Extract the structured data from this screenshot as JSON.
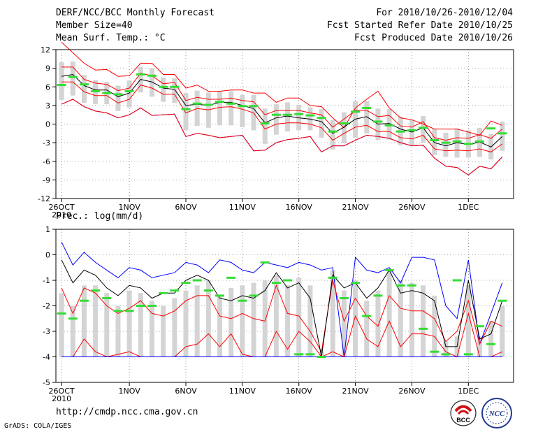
{
  "header": {
    "title": "DERF/NCC/BCC Monthly Forecast",
    "member_size": "Member Size=40",
    "variable": "Mean Surf. Temp.: °C",
    "period": "For 2010/10/26-2010/12/04",
    "started": "Fcst Started Refer Date 2010/10/25",
    "produced": "Fcst Produced Date 2010/10/26"
  },
  "footer": {
    "url": "http://cmdp.ncc.cma.gov.cn",
    "credit": "GrADS: COLA/IGES",
    "logo_bcc": "BCC",
    "logo_ncc": "NCC"
  },
  "colors": {
    "max_min": "#0000ff",
    "pct": "#ff0000",
    "mean": "#000000",
    "box": "#d4d4d4",
    "obs": "#33dd33",
    "frame": "#000000"
  },
  "chart_data": [
    {
      "type": "line",
      "title": "Mean Surf. Temp.: °C",
      "xlabel": "",
      "ylabel": "",
      "ylim": [
        -12,
        12
      ],
      "yticks": [
        12,
        9,
        6,
        3,
        0,
        -3,
        -6,
        -9,
        -12
      ],
      "xtick_labels": [
        "26OCT",
        "1NOV",
        "6NOV",
        "11NOV",
        "16NOV",
        "21NOV",
        "26NOV",
        "1DEC"
      ],
      "xtick_days": [
        1,
        7,
        12,
        17,
        22,
        27,
        32,
        37
      ],
      "year_label": "2010",
      "days": 40,
      "series": [
        {
          "name": "max",
          "values": [
            3.2,
            4.0,
            2.8,
            2.1,
            1.8,
            1.0,
            1.5,
            2.6,
            1.4,
            1.5,
            1.6,
            -2.0,
            -1.5,
            -1.8,
            -2.2,
            -2.0,
            -1.8,
            -4.3,
            -4.2,
            -3.0,
            -2.5,
            -2.3,
            -2.0,
            -4.5,
            -3.5,
            -3.5,
            -2.6,
            -1.8,
            -2.0,
            -2.3,
            -3.0,
            -3.5,
            -3.4,
            -5.5,
            -6.8,
            -7.0,
            -8.2,
            -6.8,
            -7.2,
            -5.3
          ]
        },
        {
          "name": "p90",
          "values": [
            13.2,
            11.5,
            9.8,
            8.7,
            8.8,
            7.7,
            7.8,
            9.8,
            9.8,
            8.0,
            8.0,
            5.8,
            6.3,
            5.3,
            5.3,
            5.5,
            5.5,
            5.0,
            5.0,
            3.5,
            4.2,
            4.2,
            3.0,
            2.8,
            1.0,
            -0.6,
            2.6,
            4.0,
            5.3,
            2.6,
            1.0,
            0.7,
            0.0,
            -0.8,
            -0.8,
            -0.8,
            -1.3,
            -1.8,
            0.5,
            -0.2
          ]
        },
        {
          "name": "p75",
          "values": [
            9.2,
            9.2,
            7.2,
            6.6,
            6.4,
            5.4,
            5.8,
            8.2,
            7.8,
            6.5,
            6.7,
            3.8,
            4.3,
            4.0,
            4.0,
            4.2,
            3.8,
            3.6,
            1.5,
            2.2,
            2.2,
            2.2,
            1.8,
            1.5,
            -0.5,
            0.8,
            2.2,
            2.2,
            1.2,
            1.4,
            -0.3,
            -0.5,
            0.4,
            -2.2,
            -2.6,
            -2.2,
            -2.3,
            -1.7,
            -2.3,
            -0.8
          ]
        },
        {
          "name": "mean",
          "values": [
            7.7,
            8.0,
            6.2,
            5.5,
            5.5,
            4.4,
            5.0,
            7.2,
            6.8,
            5.8,
            5.6,
            3.0,
            3.2,
            3.0,
            3.5,
            3.5,
            3.0,
            2.5,
            0.2,
            1.0,
            1.3,
            1.0,
            0.8,
            0.4,
            -1.5,
            -0.5,
            0.8,
            1.2,
            0.0,
            0.1,
            -0.8,
            -1.3,
            -0.6,
            -3.0,
            -3.5,
            -3.0,
            -3.3,
            -2.9,
            -3.7,
            -2.0
          ]
        },
        {
          "name": "p25",
          "values": [
            6.8,
            6.8,
            5.2,
            4.6,
            4.6,
            3.4,
            4.0,
            6.3,
            5.8,
            4.8,
            4.8,
            1.8,
            2.5,
            2.3,
            2.7,
            2.8,
            2.4,
            1.8,
            -0.8,
            0.0,
            0.2,
            0.2,
            0.0,
            -0.6,
            -2.6,
            -1.5,
            -0.5,
            -0.2,
            -1.2,
            -1.2,
            -2.2,
            -2.4,
            -1.8,
            -4.0,
            -4.3,
            -4.2,
            -4.3,
            -4.0,
            -4.5,
            -3.2
          ]
        },
        {
          "name": "p10",
          "values": [
            3.2,
            4.0,
            2.8,
            2.1,
            1.8,
            1.0,
            1.5,
            2.6,
            1.4,
            1.5,
            1.6,
            -2.0,
            -1.5,
            -1.8,
            -2.2,
            -2.0,
            -1.8,
            -4.3,
            -4.2,
            -3.0,
            -2.5,
            -2.3,
            -2.0,
            -4.5,
            -3.5,
            -3.5,
            -2.6,
            -1.8,
            -2.0,
            -2.3,
            -3.0,
            -3.5,
            -3.4,
            -5.5,
            -6.8,
            -7.0,
            -8.2,
            -6.8,
            -7.2,
            -5.3
          ]
        },
        {
          "name": "obs",
          "values": [
            6.3,
            7.6,
            6.4,
            5.3,
            5.0,
            4.8,
            5.3,
            8.0,
            7.8,
            6.0,
            6.0,
            2.4,
            3.3,
            3.1,
            3.6,
            3.3,
            2.9,
            2.9,
            0.1,
            1.5,
            1.5,
            1.6,
            1.4,
            1.0,
            -1.2,
            0.1,
            2.0,
            2.6,
            0.4,
            -0.2,
            -1.2,
            -1.0,
            -0.6,
            -2.6,
            -3.0,
            -2.8,
            -3.2,
            -2.8,
            -0.7,
            -1.5
          ]
        }
      ],
      "box_low": [
        3.9,
        4.6,
        3.4,
        3.2,
        3.2,
        2.1,
        2.7,
        5.1,
        4.4,
        3.6,
        3.4,
        -1.0,
        -0.3,
        -0.6,
        -0.2,
        -0.2,
        -0.5,
        -1.0,
        -3.2,
        -1.7,
        -1.2,
        -1.0,
        -1.0,
        -2.2,
        -4.1,
        -3.1,
        -2.2,
        -1.5,
        -2.6,
        -2.5,
        -3.4,
        -3.5,
        -3.0,
        -5.0,
        -5.3,
        -5.4,
        -5.4,
        -5.3,
        -5.7,
        -4.3
      ],
      "box_high": [
        10.0,
        10.1,
        7.9,
        7.1,
        6.8,
        6.2,
        7.0,
        9.2,
        9.0,
        7.5,
        7.4,
        5.0,
        5.4,
        5.1,
        5.3,
        5.3,
        4.7,
        4.7,
        2.5,
        3.2,
        3.5,
        3.1,
        2.7,
        2.4,
        0.7,
        1.9,
        3.7,
        3.7,
        2.5,
        2.4,
        1.2,
        0.7,
        1.3,
        -0.8,
        -1.4,
        -0.7,
        -1.0,
        -0.6,
        -1.6,
        0.4
      ]
    },
    {
      "type": "line",
      "title": "Prec.: log(mm/d)",
      "xlabel": "",
      "ylabel": "",
      "ylim": [
        -5,
        1
      ],
      "yticks": [
        1,
        0,
        -1,
        -2,
        -3,
        -4,
        -5
      ],
      "xtick_labels": [
        "26OCT",
        "1NOV",
        "6NOV",
        "11NOV",
        "16NOV",
        "21NOV",
        "26NOV",
        "1DEC"
      ],
      "xtick_days": [
        1,
        7,
        12,
        17,
        22,
        27,
        32,
        37
      ],
      "year_label": "2010",
      "days": 40,
      "series": [
        {
          "name": "max",
          "values": [
            0.5,
            -0.4,
            0.1,
            -0.3,
            -0.6,
            -0.9,
            -0.5,
            -0.6,
            -0.9,
            -0.8,
            -0.7,
            -0.3,
            -0.4,
            -0.7,
            -0.2,
            -0.3,
            -0.6,
            -0.7,
            -0.3,
            -0.4,
            -0.5,
            -0.3,
            -0.4,
            -0.6,
            -0.5,
            -4.0,
            -0.1,
            -0.6,
            -0.7,
            -0.5,
            -1.1,
            -0.1,
            -0.1,
            -0.2,
            -2.0,
            -2.5,
            -0.2,
            -3.5,
            -2.3,
            -1.1
          ]
        },
        {
          "name": "p90",
          "values": [
            -1.3,
            -2.3,
            -1.3,
            -1.5,
            -2.0,
            -2.3,
            -2.1,
            -1.8,
            -2.3,
            -2.4,
            -2.2,
            -1.8,
            -1.6,
            -1.6,
            -2.4,
            -2.5,
            -2.3,
            -2.5,
            -2.6,
            -1.2,
            -2.3,
            -2.4,
            -3.0,
            -3.8,
            -1.0,
            -2.6,
            -1.7,
            -2.4,
            -2.8,
            -1.6,
            -2.1,
            -2.2,
            -2.2,
            -2.5,
            -3.4,
            -3.0,
            -1.8,
            -3.5,
            -2.6,
            -2.8
          ]
        },
        {
          "name": "mean",
          "values": [
            -0.2,
            -1.1,
            -0.6,
            -0.8,
            -1.3,
            -1.6,
            -1.2,
            -1.3,
            -1.7,
            -1.5,
            -1.5,
            -1.0,
            -0.8,
            -1.0,
            -1.7,
            -1.8,
            -1.6,
            -1.7,
            -1.4,
            -0.7,
            -1.3,
            -1.1,
            -1.7,
            -4.0,
            -0.8,
            -1.3,
            -1.1,
            -1.7,
            -1.3,
            -0.6,
            -1.5,
            -1.4,
            -1.5,
            -1.8,
            -3.6,
            -3.6,
            -1.0,
            -3.3,
            -3.1,
            -1.8
          ]
        },
        {
          "name": "p10",
          "values": [
            -4.0,
            -4.0,
            -3.3,
            -3.8,
            -4.0,
            -3.9,
            -3.8,
            -4.0,
            -4.0,
            -4.0,
            -4.0,
            -3.6,
            -3.5,
            -3.1,
            -3.6,
            -3.1,
            -3.9,
            -4.0,
            -4.0,
            -3.0,
            -3.7,
            -3.0,
            -3.4,
            -4.0,
            -3.8,
            -4.0,
            -2.4,
            -3.3,
            -3.6,
            -2.6,
            -3.6,
            -3.1,
            -3.1,
            -3.2,
            -3.8,
            -4.0,
            -2.3,
            -4.0,
            -4.0,
            -3.8
          ]
        },
        {
          "name": "min",
          "values": [
            -4.0,
            -4.0,
            -4.0,
            -4.0,
            -4.0,
            -4.0,
            -4.0,
            -4.0,
            -4.0,
            -4.0,
            -4.0,
            -4.0,
            -4.0,
            -4.0,
            -4.0,
            -4.0,
            -4.0,
            -4.0,
            -4.0,
            -4.0,
            -4.0,
            -4.0,
            -4.0,
            -4.0,
            -4.0,
            -4.0,
            -4.0,
            -4.0,
            -4.0,
            -4.0,
            -4.0,
            -4.0,
            -4.0,
            -4.0,
            -4.0,
            -4.0,
            -4.0,
            -4.0,
            -4.0,
            -4.0
          ]
        },
        {
          "name": "obs",
          "values": [
            -2.3,
            -2.5,
            -1.8,
            -1.4,
            -1.7,
            -2.2,
            -2.2,
            -2.0,
            -2.0,
            -1.5,
            -1.4,
            -1.1,
            -1.0,
            -1.4,
            -1.6,
            -0.9,
            -1.8,
            -1.6,
            -0.3,
            -1.1,
            -1.0,
            -3.9,
            -3.9,
            -4.0,
            -0.9,
            -1.7,
            -1.1,
            -2.4,
            -1.6,
            -0.6,
            -1.2,
            -1.2,
            -2.9,
            -3.8,
            -3.9,
            -1.0,
            -3.9,
            -2.8,
            -3.5,
            -1.8
          ]
        }
      ],
      "box_low": [
        -4.0,
        -4.0,
        -4.0,
        -4.0,
        -4.0,
        -4.0,
        -4.0,
        -4.0,
        -4.0,
        -4.0,
        -4.0,
        -4.0,
        -4.0,
        -4.0,
        -4.0,
        -4.0,
        -4.0,
        -4.0,
        -4.0,
        -4.0,
        -4.0,
        -4.0,
        -4.0,
        -4.0,
        -4.0,
        -4.0,
        -4.0,
        -4.0,
        -4.0,
        -4.0,
        -4.0,
        -4.0,
        -4.0,
        -4.0,
        -4.0,
        -4.0,
        -4.0,
        -4.0,
        -4.0,
        -4.0
      ],
      "box_high": [
        -1.5,
        -2.0,
        -1.2,
        -1.2,
        -1.5,
        -2.0,
        -1.4,
        -1.5,
        -1.8,
        -2.0,
        -1.7,
        -1.4,
        -1.2,
        -1.0,
        -1.6,
        -1.3,
        -1.2,
        -1.1,
        -1.0,
        -0.8,
        -1.2,
        -0.9,
        -1.2,
        -3.8,
        -0.6,
        -1.4,
        -1.0,
        -1.8,
        -1.4,
        -0.6,
        -1.0,
        -1.1,
        -1.2,
        -1.6,
        -3.4,
        -3.2,
        -1.2,
        -3.2,
        -2.6,
        -2.0
      ]
    }
  ]
}
